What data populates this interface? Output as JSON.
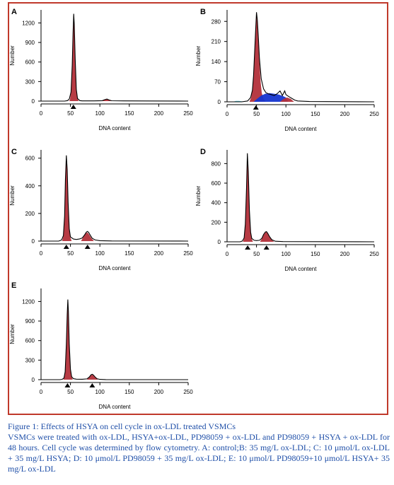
{
  "chart_data": [
    {
      "type": "area",
      "panel": "A",
      "xlabel": "DNA content",
      "ylabel": "Number",
      "xlim": [
        0,
        250
      ],
      "ylim": [
        0,
        1400
      ],
      "x_ticks": [
        0,
        50,
        100,
        150,
        200,
        250
      ],
      "y_ticks": [
        0,
        300,
        600,
        900,
        1200
      ],
      "markers": [
        55
      ],
      "curve": [
        [
          0,
          0
        ],
        [
          40,
          0
        ],
        [
          45,
          8
        ],
        [
          48,
          30
        ],
        [
          51,
          140
        ],
        [
          53,
          550
        ],
        [
          54.5,
          1050
        ],
        [
          55.5,
          1340
        ],
        [
          56.5,
          1180
        ],
        [
          58,
          650
        ],
        [
          60,
          180
        ],
        [
          62,
          40
        ],
        [
          66,
          8
        ],
        [
          70,
          3
        ],
        [
          90,
          3
        ],
        [
          104,
          6
        ],
        [
          108,
          22
        ],
        [
          112,
          32
        ],
        [
          116,
          16
        ],
        [
          120,
          5
        ],
        [
          140,
          3
        ],
        [
          180,
          2
        ],
        [
          250,
          0
        ]
      ],
      "fills": [
        {
          "color": "#b3303a",
          "points": [
            [
              47,
              0
            ],
            [
              49,
              12
            ],
            [
              51,
              140
            ],
            [
              53,
              550
            ],
            [
              54.5,
              1050
            ],
            [
              55.5,
              1340
            ],
            [
              56.5,
              1180
            ],
            [
              58,
              650
            ],
            [
              60,
              180
            ],
            [
              62,
              40
            ],
            [
              64,
              0
            ]
          ]
        },
        {
          "color": "#b3303a",
          "points": [
            [
              104,
              0
            ],
            [
              108,
              18
            ],
            [
              112,
              28
            ],
            [
              116,
              12
            ],
            [
              120,
              0
            ]
          ]
        }
      ]
    },
    {
      "type": "area",
      "panel": "B",
      "xlabel": "DNA content",
      "ylabel": "Number",
      "xlim": [
        0,
        250
      ],
      "ylim": [
        0,
        320
      ],
      "x_ticks": [
        0,
        50,
        100,
        150,
        200,
        250
      ],
      "y_ticks": [
        0,
        70,
        140,
        210,
        280
      ],
      "markers": [
        49
      ],
      "curve": [
        [
          0,
          0
        ],
        [
          25,
          0
        ],
        [
          35,
          3
        ],
        [
          40,
          15
        ],
        [
          43,
          40
        ],
        [
          45,
          90
        ],
        [
          47,
          180
        ],
        [
          48.5,
          250
        ],
        [
          50,
          312
        ],
        [
          51.5,
          285
        ],
        [
          53,
          230
        ],
        [
          55,
          150
        ],
        [
          58,
          80
        ],
        [
          62,
          45
        ],
        [
          66,
          32
        ],
        [
          70,
          28
        ],
        [
          75,
          25
        ],
        [
          80,
          22
        ],
        [
          85,
          28
        ],
        [
          90,
          38
        ],
        [
          94,
          22
        ],
        [
          98,
          38
        ],
        [
          100,
          25
        ],
        [
          105,
          18
        ],
        [
          110,
          12
        ],
        [
          115,
          6
        ],
        [
          120,
          3
        ],
        [
          140,
          1
        ],
        [
          250,
          0
        ]
      ],
      "fills": [
        {
          "color": "#5ac8d8",
          "points": [
            [
              10,
              0
            ],
            [
              15,
              3
            ],
            [
              20,
              3
            ],
            [
              25,
              2
            ],
            [
              30,
              0
            ]
          ]
        },
        {
          "color": "#b3303a",
          "points": [
            [
              38,
              0
            ],
            [
              41,
              15
            ],
            [
              43,
              40
            ],
            [
              45,
              90
            ],
            [
              47,
              180
            ],
            [
              48.5,
              245
            ],
            [
              50,
              300
            ],
            [
              51.5,
              275
            ],
            [
              53,
              215
            ],
            [
              55,
              140
            ],
            [
              57,
              70
            ],
            [
              59,
              30
            ],
            [
              62,
              10
            ],
            [
              66,
              0
            ]
          ]
        },
        {
          "color": "#1535d0",
          "points": [
            [
              45,
              0
            ],
            [
              52,
              12
            ],
            [
              58,
              22
            ],
            [
              65,
              28
            ],
            [
              72,
              30
            ],
            [
              80,
              28
            ],
            [
              88,
              25
            ],
            [
              95,
              20
            ],
            [
              100,
              15
            ],
            [
              104,
              0
            ]
          ]
        },
        {
          "color": "#b3303a",
          "points": [
            [
              90,
              0
            ],
            [
              96,
              10
            ],
            [
              102,
              15
            ],
            [
              108,
              10
            ],
            [
              114,
              0
            ]
          ]
        }
      ]
    },
    {
      "type": "area",
      "panel": "C",
      "xlabel": "DNA content",
      "ylabel": "Number",
      "xlim": [
        0,
        250
      ],
      "ylim": [
        0,
        660
      ],
      "x_ticks": [
        0,
        50,
        100,
        150,
        200,
        250
      ],
      "y_ticks": [
        0,
        200,
        400,
        600
      ],
      "markers": [
        43,
        79
      ],
      "curve": [
        [
          0,
          0
        ],
        [
          30,
          0
        ],
        [
          35,
          8
        ],
        [
          38,
          40
        ],
        [
          40,
          180
        ],
        [
          41.5,
          450
        ],
        [
          43,
          620
        ],
        [
          44.5,
          520
        ],
        [
          46,
          280
        ],
        [
          48,
          90
        ],
        [
          50,
          30
        ],
        [
          55,
          15
        ],
        [
          60,
          12
        ],
        [
          65,
          15
        ],
        [
          70,
          22
        ],
        [
          74,
          45
        ],
        [
          77,
          65
        ],
        [
          79,
          70
        ],
        [
          81,
          62
        ],
        [
          84,
          40
        ],
        [
          87,
          20
        ],
        [
          92,
          8
        ],
        [
          100,
          3
        ],
        [
          120,
          1
        ],
        [
          250,
          0
        ]
      ],
      "fills": [
        {
          "color": "#b3303a",
          "points": [
            [
              36,
              0
            ],
            [
              38,
              35
            ],
            [
              40,
              175
            ],
            [
              41.5,
              445
            ],
            [
              43,
              615
            ],
            [
              44.5,
              515
            ],
            [
              46,
              275
            ],
            [
              48,
              85
            ],
            [
              50,
              25
            ],
            [
              52,
              0
            ]
          ]
        },
        {
          "color": "#b3303a",
          "points": [
            [
              68,
              0
            ],
            [
              72,
              30
            ],
            [
              75,
              52
            ],
            [
              78,
              62
            ],
            [
              80,
              58
            ],
            [
              83,
              38
            ],
            [
              86,
              18
            ],
            [
              90,
              0
            ]
          ]
        }
      ]
    },
    {
      "type": "area",
      "panel": "D",
      "xlabel": "DNA content",
      "ylabel": "Number",
      "xlim": [
        0,
        250
      ],
      "ylim": [
        0,
        940
      ],
      "x_ticks": [
        0,
        50,
        100,
        150,
        200,
        250
      ],
      "y_ticks": [
        0,
        200,
        400,
        600,
        800
      ],
      "markers": [
        35,
        67
      ],
      "curve": [
        [
          0,
          0
        ],
        [
          22,
          0
        ],
        [
          26,
          8
        ],
        [
          29,
          40
        ],
        [
          31,
          180
        ],
        [
          33,
          550
        ],
        [
          34.5,
          905
        ],
        [
          36,
          720
        ],
        [
          38,
          320
        ],
        [
          40,
          100
        ],
        [
          42,
          35
        ],
        [
          46,
          15
        ],
        [
          50,
          12
        ],
        [
          55,
          15
        ],
        [
          59,
          35
        ],
        [
          62,
          75
        ],
        [
          65,
          100
        ],
        [
          67,
          105
        ],
        [
          69,
          88
        ],
        [
          72,
          55
        ],
        [
          76,
          22
        ],
        [
          82,
          6
        ],
        [
          95,
          2
        ],
        [
          250,
          0
        ]
      ],
      "fills": [
        {
          "color": "#b3303a",
          "points": [
            [
              27,
              0
            ],
            [
              29,
              35
            ],
            [
              31,
              175
            ],
            [
              33,
              545
            ],
            [
              34.5,
              900
            ],
            [
              36,
              715
            ],
            [
              38,
              315
            ],
            [
              40,
              95
            ],
            [
              42,
              30
            ],
            [
              44,
              0
            ]
          ]
        },
        {
          "color": "#b3303a",
          "points": [
            [
              56,
              0
            ],
            [
              59,
              30
            ],
            [
              62,
              70
            ],
            [
              65,
              95
            ],
            [
              67,
              100
            ],
            [
              69,
              83
            ],
            [
              72,
              50
            ],
            [
              76,
              18
            ],
            [
              80,
              0
            ]
          ]
        }
      ]
    },
    {
      "type": "area",
      "panel": "E",
      "xlabel": "DNA content",
      "ylabel": "Number",
      "xlim": [
        0,
        250
      ],
      "ylim": [
        0,
        1400
      ],
      "x_ticks": [
        0,
        50,
        100,
        150,
        200,
        250
      ],
      "y_ticks": [
        0,
        300,
        600,
        900,
        1200
      ],
      "markers": [
        45,
        87
      ],
      "curve": [
        [
          0,
          0
        ],
        [
          32,
          0
        ],
        [
          36,
          5
        ],
        [
          39,
          25
        ],
        [
          41,
          120
        ],
        [
          43,
          550
        ],
        [
          44.5,
          1000
        ],
        [
          45.5,
          1230
        ],
        [
          46.5,
          1050
        ],
        [
          48,
          550
        ],
        [
          50,
          160
        ],
        [
          52,
          45
        ],
        [
          55,
          15
        ],
        [
          60,
          8
        ],
        [
          70,
          6
        ],
        [
          78,
          12
        ],
        [
          82,
          40
        ],
        [
          85,
          75
        ],
        [
          87,
          82
        ],
        [
          89,
          72
        ],
        [
          92,
          40
        ],
        [
          95,
          15
        ],
        [
          100,
          4
        ],
        [
          110,
          1
        ],
        [
          250,
          0
        ]
      ],
      "fills": [
        {
          "color": "#b3303a",
          "points": [
            [
              38,
              0
            ],
            [
              41,
              115
            ],
            [
              43,
              545
            ],
            [
              44.5,
              995
            ],
            [
              45.5,
              1225
            ],
            [
              46.5,
              1045
            ],
            [
              48,
              545
            ],
            [
              50,
              155
            ],
            [
              52,
              40
            ],
            [
              54,
              0
            ]
          ]
        },
        {
          "color": "#b3303a",
          "points": [
            [
              78,
              0
            ],
            [
              81,
              30
            ],
            [
              84,
              62
            ],
            [
              87,
              75
            ],
            [
              89,
              65
            ],
            [
              92,
              35
            ],
            [
              95,
              10
            ],
            [
              97,
              0
            ]
          ]
        }
      ]
    }
  ],
  "caption": {
    "title": "Figure 1: Effects of HSYA on cell cycle in ox-LDL treated VSMCs",
    "body": "VSMCs were treated with ox-LDL, HSYA+ox-LDL, PD98059 + ox-LDL and PD98059 + HSYA + ox-LDL for 48 hours. Cell cycle was determined by flow cytometry. A: control;B: 35 mg/L ox-LDL; C: 10 μmol/L ox-LDL + 35 mg/L HSYA; D: 10 μmol/L PD98059 + 35 mg/L ox-LDL; E: 10 μmol/L PD98059+10 μmol/L HSYA+ 35 mg/L ox-LDL"
  },
  "colors": {
    "frame": "#c0392b",
    "caption_text": "#1f4fa8",
    "g1_fill": "#b3303a",
    "s_phase_fill": "#1535d0",
    "debris_fill": "#5ac8d8"
  }
}
